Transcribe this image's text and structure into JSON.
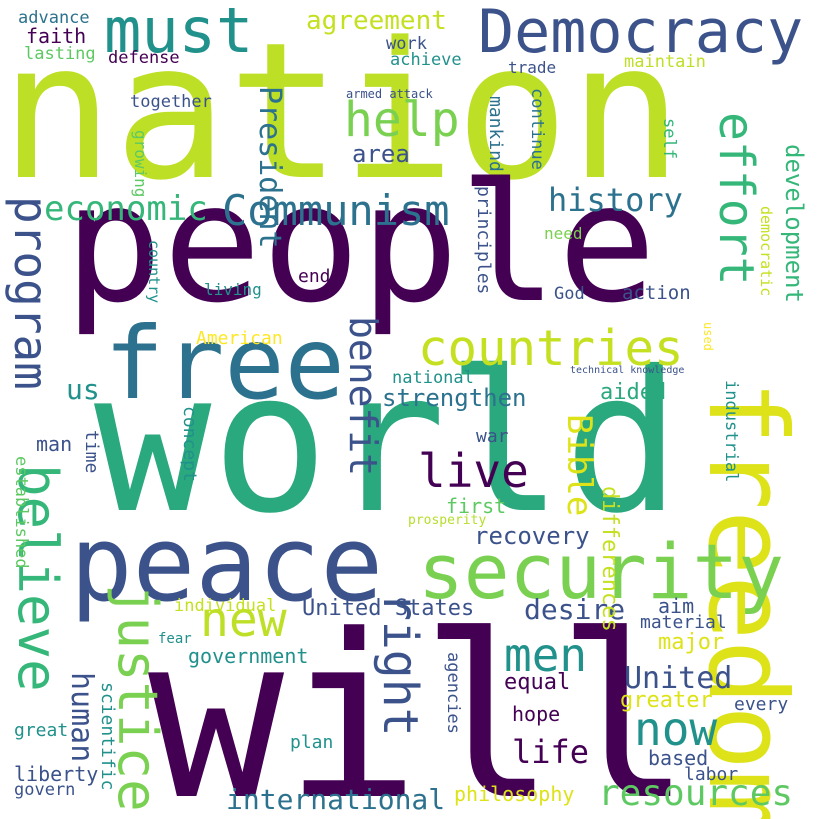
{
  "word_cloud": {
    "palette": [
      "#440154",
      "#3b528b",
      "#21918c",
      "#5ec962",
      "#fde725"
    ],
    "words": [
      {
        "text": "nation",
        "color": "#bddf26"
      },
      {
        "text": "people",
        "color": "#440154"
      },
      {
        "text": "world",
        "color": "#2aa87e"
      },
      {
        "text": "will",
        "color": "#440154"
      },
      {
        "text": "peace",
        "color": "#3b528b"
      },
      {
        "text": "freedom",
        "color": "#dde318"
      },
      {
        "text": "free",
        "color": "#2c728e"
      },
      {
        "text": "security",
        "color": "#7ad151"
      },
      {
        "text": "Democracy",
        "color": "#3b528b"
      },
      {
        "text": "must",
        "color": "#21918c"
      },
      {
        "text": "countries",
        "color": "#c5e021"
      },
      {
        "text": "Communism",
        "color": "#2c728e"
      },
      {
        "text": "program",
        "color": "#3b528b"
      },
      {
        "text": "effort",
        "color": "#35b779"
      },
      {
        "text": "believe",
        "color": "#35b779"
      },
      {
        "text": "justice",
        "color": "#7ad151"
      },
      {
        "text": "new",
        "color": "#bddf26"
      },
      {
        "text": "help",
        "color": "#7ad151"
      },
      {
        "text": "live",
        "color": "#440154"
      },
      {
        "text": "men",
        "color": "#21918c"
      },
      {
        "text": "now",
        "color": "#21918c"
      },
      {
        "text": "right",
        "color": "#3b528b"
      },
      {
        "text": "benefit",
        "color": "#3b528b"
      },
      {
        "text": "resources",
        "color": "#5ec962"
      },
      {
        "text": "economic",
        "color": "#35b779"
      },
      {
        "text": "history",
        "color": "#2c728e"
      },
      {
        "text": "President",
        "color": "#2c728e"
      },
      {
        "text": "Bible",
        "color": "#dde318"
      },
      {
        "text": "international",
        "color": "#2c728e"
      },
      {
        "text": "United",
        "color": "#3b528b"
      },
      {
        "text": "human",
        "color": "#3b528b"
      },
      {
        "text": "life",
        "color": "#440154"
      },
      {
        "text": "desire",
        "color": "#3b528b"
      },
      {
        "text": "development",
        "color": "#35b779"
      },
      {
        "text": "agreement",
        "color": "#c5e021"
      },
      {
        "text": "recovery",
        "color": "#3b528b"
      },
      {
        "text": "strengthen",
        "color": "#2c728e"
      },
      {
        "text": "United States",
        "color": "#3b528b"
      },
      {
        "text": "area",
        "color": "#3b528b"
      },
      {
        "text": "us",
        "color": "#21918c"
      },
      {
        "text": "aided",
        "color": "#2aa87e"
      },
      {
        "text": "government",
        "color": "#21918c"
      },
      {
        "text": "differences",
        "color": "#c5e021"
      },
      {
        "text": "faith",
        "color": "#440154"
      },
      {
        "text": "scientific",
        "color": "#21918c"
      },
      {
        "text": "hope",
        "color": "#440154"
      },
      {
        "text": "equal",
        "color": "#440154"
      },
      {
        "text": "greater",
        "color": "#dde318"
      },
      {
        "text": "major",
        "color": "#dde318"
      },
      {
        "text": "material",
        "color": "#3b528b"
      },
      {
        "text": "aim",
        "color": "#3b528b"
      },
      {
        "text": "every",
        "color": "#3b528b"
      },
      {
        "text": "based",
        "color": "#3b528b"
      },
      {
        "text": "labor",
        "color": "#3b528b"
      },
      {
        "text": "philosophy",
        "color": "#dde318"
      },
      {
        "text": "plan",
        "color": "#21918c"
      },
      {
        "text": "liberty",
        "color": "#3b528b"
      },
      {
        "text": "great",
        "color": "#21918c"
      },
      {
        "text": "govern",
        "color": "#3b528b"
      },
      {
        "text": "established",
        "color": "#5ec962"
      },
      {
        "text": "man",
        "color": "#3b528b"
      },
      {
        "text": "time",
        "color": "#3b528b"
      },
      {
        "text": "concept",
        "color": "#21918c"
      },
      {
        "text": "war",
        "color": "#3b528b"
      },
      {
        "text": "first",
        "color": "#5ec962"
      },
      {
        "text": "prosperity",
        "color": "#b5de2b"
      },
      {
        "text": "national",
        "color": "#21918c"
      },
      {
        "text": "industrial",
        "color": "#21918c"
      },
      {
        "text": "democratic",
        "color": "#c5e021"
      },
      {
        "text": "technical knowledge",
        "color": "#3b528b"
      },
      {
        "text": "used",
        "color": "#fde725"
      },
      {
        "text": "American",
        "color": "#fde725"
      },
      {
        "text": "individual",
        "color": "#c5e021"
      },
      {
        "text": "fear",
        "color": "#21918c"
      },
      {
        "text": "agencies",
        "color": "#3b528b"
      },
      {
        "text": "living",
        "color": "#21918c"
      },
      {
        "text": "country",
        "color": "#21918c"
      },
      {
        "text": "end",
        "color": "#440154"
      },
      {
        "text": "principles",
        "color": "#3b528b"
      },
      {
        "text": "God",
        "color": "#3b528b"
      },
      {
        "text": "action",
        "color": "#3b528b"
      },
      {
        "text": "need",
        "color": "#7ad151"
      },
      {
        "text": "growing",
        "color": "#5ec962"
      },
      {
        "text": "together",
        "color": "#3b528b"
      },
      {
        "text": "mankind",
        "color": "#2c728e"
      },
      {
        "text": "continue",
        "color": "#2c728e"
      },
      {
        "text": "self",
        "color": "#35b779"
      },
      {
        "text": "armed attack",
        "color": "#3b528b"
      },
      {
        "text": "trade",
        "color": "#3b528b"
      },
      {
        "text": "maintain",
        "color": "#bddf26"
      },
      {
        "text": "work",
        "color": "#3b528b"
      },
      {
        "text": "achieve",
        "color": "#21918c"
      },
      {
        "text": "advance",
        "color": "#2c728e"
      },
      {
        "text": "lasting",
        "color": "#5ec962"
      },
      {
        "text": "defense",
        "color": "#440154"
      }
    ]
  }
}
